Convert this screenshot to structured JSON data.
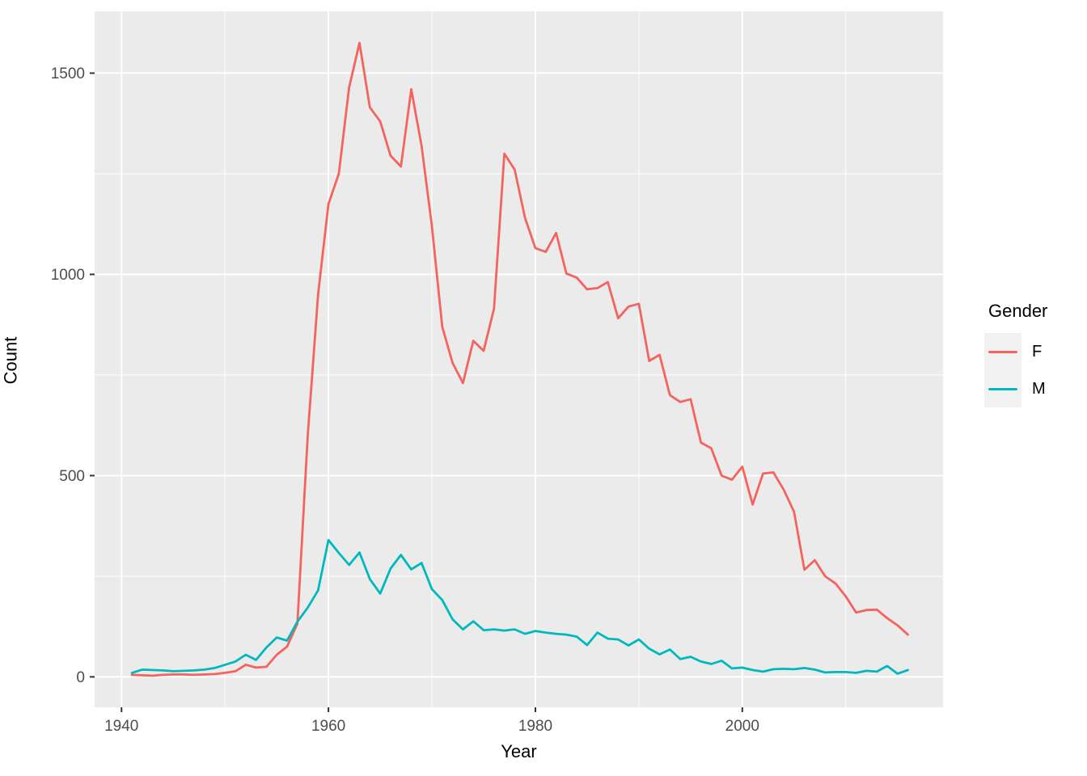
{
  "chart_data": {
    "type": "line",
    "title": "",
    "xlabel": "Year",
    "ylabel": "Count",
    "legend_title": "Gender",
    "legend_position": "right",
    "grid": true,
    "panel_bg": "#EBEBEB",
    "grid_color": "#FFFFFF",
    "tick_color": "#333333",
    "tick_label_color": "#4D4D4D",
    "axis_title_color": "#000000",
    "legend_key_bg": "#F1F1F1",
    "x_ticks": [
      1940,
      1960,
      1980,
      2000
    ],
    "x_minor_ticks": [
      1950,
      1970,
      1990,
      2010
    ],
    "y_ticks": [
      0,
      500,
      1000,
      1500
    ],
    "y_minor_ticks": [
      250,
      750,
      1250
    ],
    "xlim": [
      1937.4,
      2019.4
    ],
    "ylim": [
      -75.6,
      1653.6
    ],
    "x": [
      1941,
      1942,
      1943,
      1944,
      1945,
      1946,
      1947,
      1948,
      1949,
      1950,
      1951,
      1952,
      1953,
      1954,
      1955,
      1956,
      1957,
      1958,
      1959,
      1960,
      1961,
      1962,
      1963,
      1964,
      1965,
      1966,
      1967,
      1968,
      1969,
      1970,
      1971,
      1972,
      1973,
      1974,
      1975,
      1976,
      1977,
      1978,
      1979,
      1980,
      1981,
      1982,
      1983,
      1984,
      1985,
      1986,
      1987,
      1988,
      1989,
      1990,
      1991,
      1992,
      1993,
      1994,
      1995,
      1996,
      1997,
      1998,
      1999,
      2000,
      2001,
      2002,
      2003,
      2004,
      2005,
      2006,
      2007,
      2008,
      2009,
      2010,
      2011,
      2012,
      2013,
      2014,
      2015,
      2016
    ],
    "series": [
      {
        "name": "F",
        "color": "#F4635D",
        "values": [
          5,
          4,
          3,
          5,
          6,
          6,
          5,
          6,
          7,
          10,
          14,
          30,
          23,
          25,
          55,
          75,
          132,
          600,
          950,
          1175,
          1250,
          1465,
          1575,
          1415,
          1380,
          1295,
          1268,
          1460,
          1320,
          1120,
          870,
          780,
          730,
          835,
          810,
          915,
          1300,
          1260,
          1140,
          1065,
          1056,
          1103,
          1002,
          992,
          963,
          966,
          981,
          891,
          920,
          927,
          785,
          800,
          700,
          683,
          690,
          582,
          568,
          500,
          490,
          522,
          428,
          505,
          508,
          465,
          410,
          266,
          290,
          250,
          232,
          200,
          160,
          166,
          167,
          146,
          128,
          105
        ]
      },
      {
        "name": "M",
        "color": "#00B9BD",
        "values": [
          10,
          18,
          17,
          16,
          14,
          15,
          16,
          18,
          22,
          30,
          38,
          55,
          42,
          73,
          98,
          90,
          137,
          172,
          215,
          340,
          308,
          278,
          309,
          243,
          207,
          269,
          303,
          267,
          283,
          218,
          191,
          143,
          118,
          138,
          116,
          118,
          115,
          118,
          107,
          114,
          110,
          107,
          105,
          100,
          79,
          110,
          95,
          93,
          78,
          93,
          70,
          56,
          68,
          44,
          50,
          38,
          32,
          40,
          21,
          23,
          17,
          13,
          19,
          20,
          19,
          22,
          18,
          11,
          12,
          12,
          10,
          15,
          13,
          27,
          8,
          17
        ]
      }
    ]
  }
}
